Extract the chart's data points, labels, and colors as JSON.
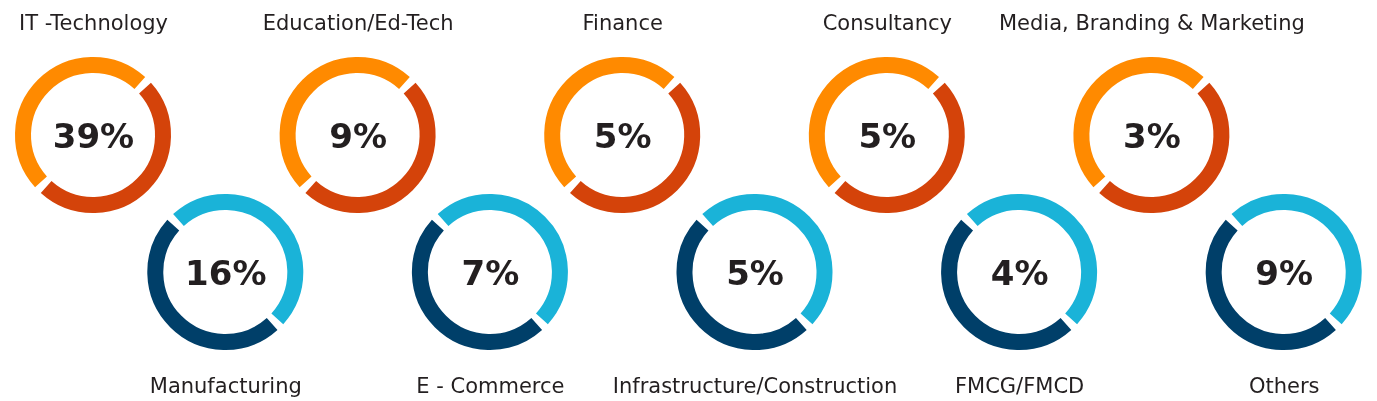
{
  "chart_data": {
    "type": "other",
    "categories": [
      "IT -Technology",
      "Manufacturing",
      "Education/Ed-Tech",
      "E - Commerce",
      "Finance",
      "Infrastructure/Construction",
      "Consultancy",
      "FMCG/FMCD",
      "Media, Branding & Marketing",
      "Others"
    ],
    "values": [
      39,
      16,
      9,
      7,
      5,
      5,
      5,
      4,
      3,
      9
    ],
    "value_labels": [
      "39%",
      "16%",
      "9%",
      "7%",
      "5%",
      "5%",
      "5%",
      "4%",
      "3%",
      "9%"
    ],
    "colors": [
      [
        "#ff8a00",
        "#d4430a"
      ],
      [
        "#1ab3d8",
        "#003f69"
      ],
      [
        "#ff8a00",
        "#d4430a"
      ],
      [
        "#1ab3d8",
        "#003f69"
      ],
      [
        "#ff8a00",
        "#d4430a"
      ],
      [
        "#1ab3d8",
        "#003f69"
      ],
      [
        "#ff8a00",
        "#d4430a"
      ],
      [
        "#1ab3d8",
        "#003f69"
      ],
      [
        "#ff8a00",
        "#d4430a"
      ],
      [
        "#1ab3d8",
        "#003f69"
      ]
    ]
  }
}
